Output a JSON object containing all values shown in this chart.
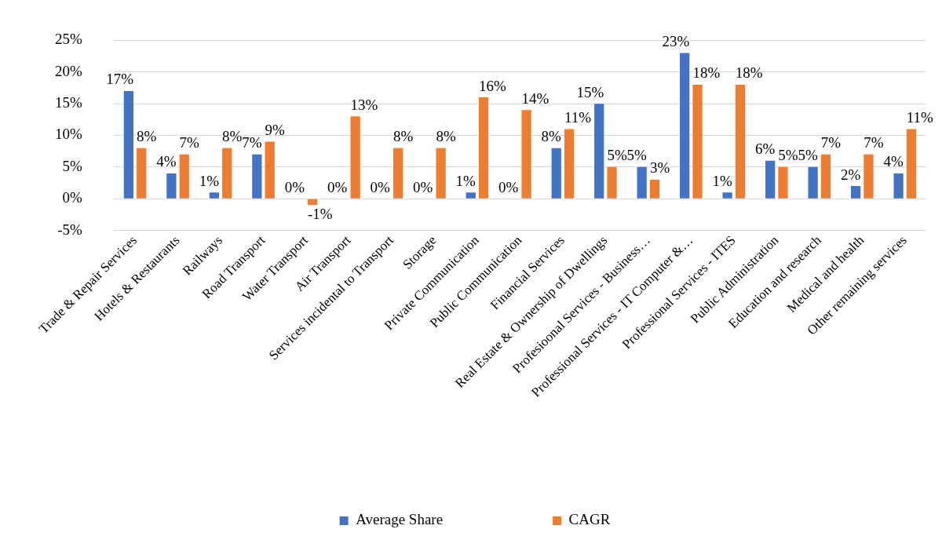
{
  "chart_data": {
    "type": "bar",
    "categories": [
      "Trade & Repair Services",
      "Hotels & Restaurants",
      "Railways",
      "Road Transport",
      "Water Transport",
      "Air Transport",
      "Services incidental to Transport",
      "Storage",
      "Private Communication",
      "Public Communication",
      "Financial Services",
      "Real Estate & Ownership of Dwellings",
      "Profesioonal Services - Business…",
      "Professional Services - IT Computer &…",
      "Professional Services - ITES",
      "Public Administration",
      "Education and research",
      "Medical and health",
      "Other remaining services"
    ],
    "series": [
      {
        "name": "Average Share",
        "color": "#4472c4",
        "values": [
          17,
          4,
          1,
          7,
          0,
          0,
          0,
          0,
          1,
          0,
          8,
          15,
          5,
          23,
          1,
          6,
          5,
          2,
          4
        ],
        "value_labels": [
          "17%",
          "4%",
          "1%",
          "7%",
          "0%",
          "0%",
          "0%",
          "0%",
          "1%",
          "0%",
          "8%",
          "15%",
          "5%",
          "23%",
          "1%",
          "6%",
          "5%",
          "2%",
          "4%"
        ]
      },
      {
        "name": "CAGR",
        "color": "#ed7d31",
        "values": [
          8,
          7,
          8,
          9,
          -1,
          13,
          8,
          8,
          16,
          14,
          11,
          5,
          3,
          18,
          18,
          5,
          7,
          7,
          11
        ],
        "value_labels": [
          "8%",
          "7%",
          "8%",
          "9%",
          "-1%",
          "13%",
          "8%",
          "8%",
          "16%",
          "14%",
          "11%",
          "5%",
          "3%",
          "18%",
          "18%",
          "5%",
          "7%",
          "7%",
          "11%"
        ]
      }
    ],
    "ylim": [
      -5,
      25
    ],
    "yticks": [
      {
        "value": -5,
        "label": "-5%"
      },
      {
        "value": 0,
        "label": "0%"
      },
      {
        "value": 5,
        "label": "5%"
      },
      {
        "value": 10,
        "label": "10%"
      },
      {
        "value": 15,
        "label": "15%"
      },
      {
        "value": 20,
        "label": "20%"
      },
      {
        "value": 25,
        "label": "25%"
      }
    ],
    "grid": "y",
    "legend": "bottom"
  }
}
